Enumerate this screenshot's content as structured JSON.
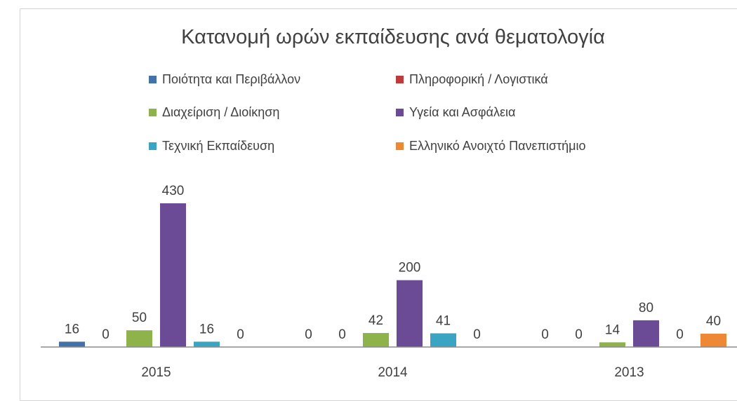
{
  "chart_data": {
    "type": "bar",
    "title": "Κατανομή ωρών εκπαίδευσης ανά θεματολογία",
    "xlabel": "",
    "ylabel": "",
    "categories": [
      "2015",
      "2014",
      "2013"
    ],
    "ylim": [
      0,
      430
    ],
    "grid": false,
    "legend_position": "top",
    "series": [
      {
        "name": "Ποιότητα και Περιβάλλον",
        "color": "#4472a8",
        "values": [
          16,
          0,
          0
        ]
      },
      {
        "name": "Πληροφορική / Λογιστικά",
        "color": "#be3b3b",
        "values": [
          0,
          0,
          0
        ]
      },
      {
        "name": "Διαχείριση / Διοίκηση",
        "color": "#8db34a",
        "values": [
          50,
          42,
          14
        ]
      },
      {
        "name": "Υγεία και Ασφάλεια",
        "color": "#6c4b96",
        "values": [
          430,
          200,
          80
        ]
      },
      {
        "name": "Τεχνική Εκπαίδευση",
        "color": "#3aa5c2",
        "values": [
          16,
          41,
          0
        ]
      },
      {
        "name": "Ελληνικό Ανοιχτό Πανεπιστήμιο",
        "color": "#ee8834",
        "values": [
          0,
          0,
          40
        ]
      }
    ]
  }
}
